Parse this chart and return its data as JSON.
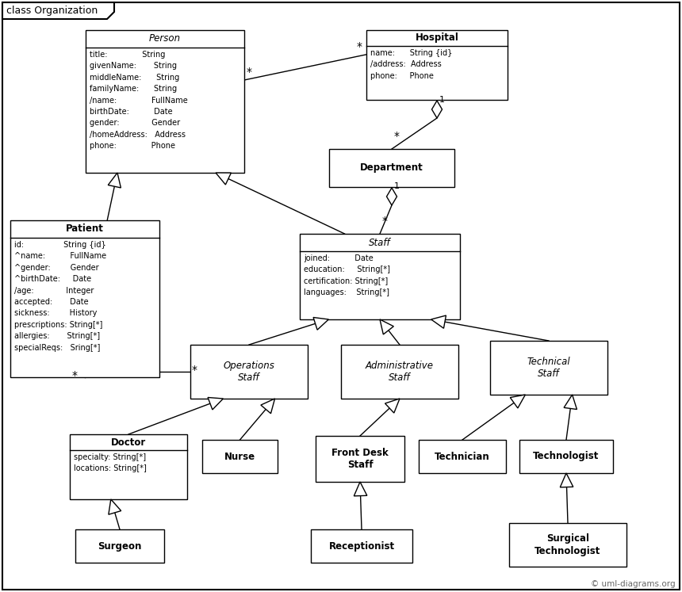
{
  "title": "class Organization",
  "boxes": {
    "Person": [
      108,
      38,
      200,
      180
    ],
    "Hospital": [
      462,
      38,
      178,
      88
    ],
    "Patient": [
      13,
      278,
      188,
      198
    ],
    "Department": [
      415,
      188,
      158,
      48
    ],
    "Staff": [
      378,
      295,
      202,
      108
    ],
    "OperationsStaff": [
      240,
      435,
      148,
      68
    ],
    "AdministrativeStaff": [
      430,
      435,
      148,
      68
    ],
    "TechnicalStaff": [
      618,
      430,
      148,
      68
    ],
    "Doctor": [
      88,
      548,
      148,
      82
    ],
    "Nurse": [
      255,
      555,
      95,
      42
    ],
    "FrontDeskStaff": [
      398,
      550,
      112,
      58
    ],
    "Technician": [
      528,
      555,
      110,
      42
    ],
    "Technologist": [
      655,
      555,
      118,
      42
    ],
    "Surgeon": [
      95,
      668,
      112,
      42
    ],
    "Receptionist": [
      392,
      668,
      128,
      42
    ],
    "SurgicalTechnologist": [
      642,
      660,
      148,
      55
    ]
  },
  "person_attrs": "title:              String\ngivenName:       String\nmiddleName:      String\nfamilyName:      String\n/name:              FullName\nbirthDate:          Date\ngender:             Gender\n/homeAddress:   Address\nphone:              Phone",
  "hospital_attrs": "name:      String {id}\n/address:  Address\nphone:     Phone",
  "patient_attrs": "id:                String {id}\n^name:          FullName\n^gender:        Gender\n^birthDate:     Date\n/age:             Integer\naccepted:       Date\nsickness:        History\nprescriptions: String[*]\nallergies:       String[*]\nspecialReqs:   Sring[*]",
  "staff_attrs": "joined:          Date\neducation:     String[*]\ncertification: String[*]\nlanguages:    String[*]",
  "doctor_attrs": "specialty: String[*]\nlocations: String[*]"
}
